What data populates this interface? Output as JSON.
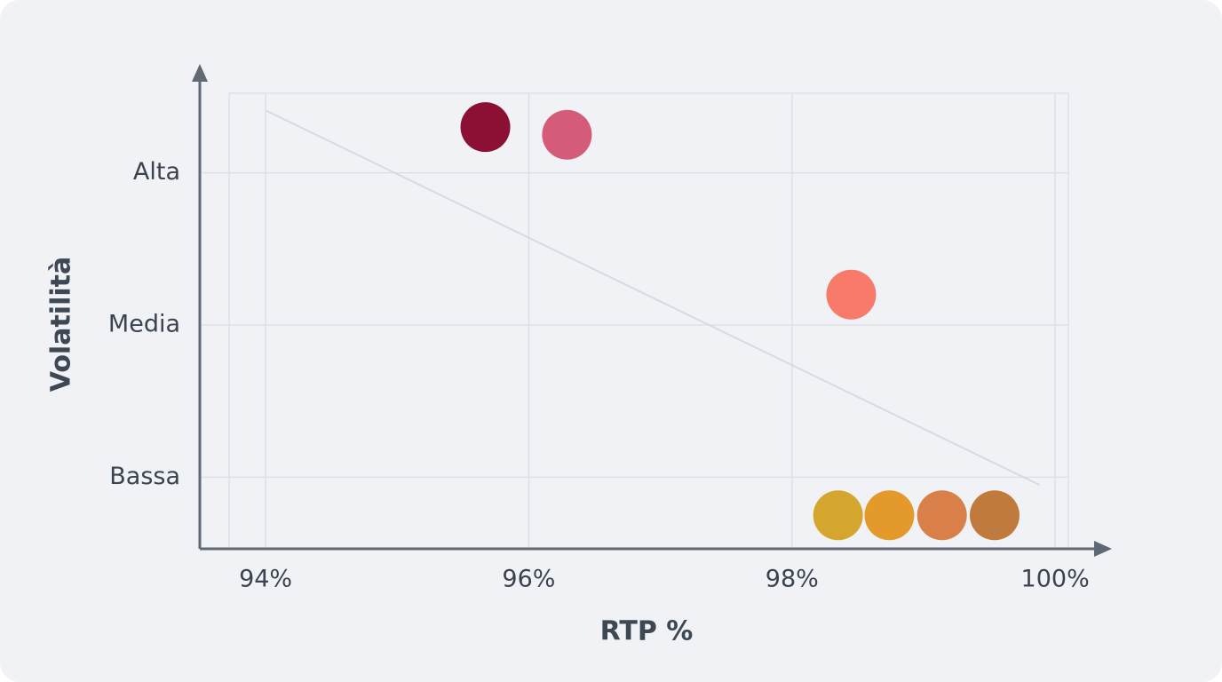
{
  "chart_data": {
    "type": "scatter",
    "x_label": "RTP %",
    "y_label": "Volatilità",
    "x": [
      95.67,
      96.29,
      98.45,
      98.35,
      98.74,
      99.14,
      99.54
    ],
    "values": [
      3.3,
      3.25,
      2.2,
      0.75,
      0.75,
      0.75,
      0.75
    ],
    "colors": [
      "#8b1034",
      "#d45c78",
      "#f87a6a",
      "#d4a62e",
      "#e39a2a",
      "#d9804a",
      "#c07a3e"
    ],
    "trend": {
      "x": [
        94,
        99.88
      ],
      "values": [
        3.41,
        0.95
      ],
      "color": "#d6dbe2"
    },
    "xlim": [
      93.5,
      100.35
    ],
    "ylim": [
      0.53,
      3.61
    ],
    "xticks": [
      {
        "value": 94,
        "label": "94%"
      },
      {
        "value": 96,
        "label": "96%"
      },
      {
        "value": 98,
        "label": "98%"
      },
      {
        "value": 100,
        "label": "100%"
      }
    ],
    "yticks": [
      {
        "value": 1,
        "label": "Bassa"
      },
      {
        "value": 2,
        "label": "Media"
      },
      {
        "value": 3,
        "label": "Alta"
      }
    ],
    "grid": true
  }
}
